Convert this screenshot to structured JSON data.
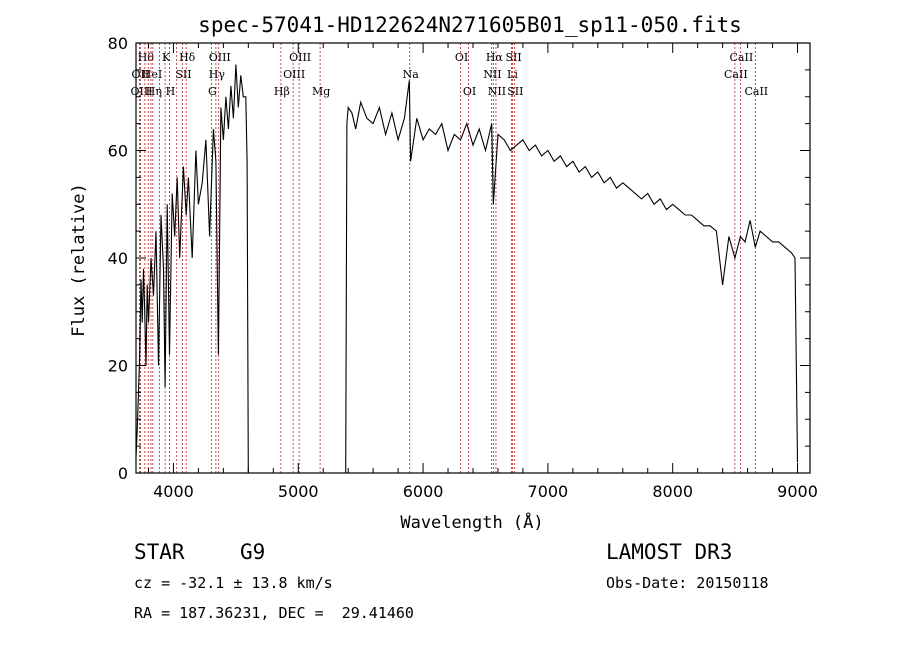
{
  "title": "spec-57041-HD122624N271605B01_sp11-050.fits",
  "info": {
    "class": "STAR",
    "subclass": "G9",
    "survey": "LAMOST DR3",
    "cz": "cz = -32.1 ± 13.8 km/s",
    "obs_date": "Obs-Date: 20150118",
    "coords": "RA = 187.36231, DEC =  29.41460"
  },
  "chart_data": {
    "type": "line",
    "title": "spec-57041-HD122624N271605B01_sp11-050.fits",
    "xlabel": "Wavelength (Å)",
    "ylabel": "Flux (relative)",
    "xlim": [
      3700,
      9100
    ],
    "ylim": [
      0,
      80
    ],
    "xticks": [
      4000,
      5000,
      6000,
      7000,
      8000,
      9000
    ],
    "yticks": [
      0,
      20,
      40,
      60,
      80
    ],
    "grid": false,
    "series": [
      {
        "x": [
          3700,
          3710,
          3720,
          3730,
          3740,
          3750,
          3760,
          3770,
          3780,
          3790,
          3800,
          3820,
          3840,
          3860,
          3880,
          3900,
          3920,
          3933,
          3950,
          3968,
          3990,
          4010,
          4030,
          4050,
          4080,
          4102,
          4120,
          4150,
          4180,
          4200,
          4230,
          4260,
          4290,
          4320,
          4340,
          4360,
          4380,
          4400,
          4420,
          4440,
          4460,
          4480,
          4500,
          4520,
          4540,
          4560,
          4580,
          4590,
          4600,
          4610,
          5380,
          5390,
          5400,
          5430,
          5460,
          5500,
          5550,
          5600,
          5650,
          5700,
          5750,
          5800,
          5850,
          5890,
          5900,
          5950,
          6000,
          6050,
          6100,
          6150,
          6200,
          6250,
          6300,
          6350,
          6400,
          6450,
          6500,
          6550,
          6563,
          6600,
          6650,
          6700,
          6750,
          6800,
          6850,
          6900,
          6950,
          7000,
          7050,
          7100,
          7150,
          7200,
          7250,
          7300,
          7350,
          7400,
          7450,
          7500,
          7550,
          7600,
          7650,
          7700,
          7750,
          7800,
          7850,
          7900,
          7950,
          8000,
          8050,
          8100,
          8150,
          8200,
          8250,
          8300,
          8350,
          8400,
          8450,
          8498,
          8542,
          8580,
          8620,
          8662,
          8700,
          8750,
          8800,
          8850,
          8900,
          8950,
          8980,
          9000
        ],
        "values": [
          3,
          8,
          15,
          22,
          36,
          28,
          38,
          30,
          20,
          35,
          28,
          40,
          33,
          45,
          20,
          48,
          38,
          16,
          50,
          22,
          52,
          44,
          55,
          40,
          57,
          48,
          55,
          40,
          60,
          50,
          54,
          62,
          44,
          64,
          58,
          22,
          68,
          62,
          70,
          64,
          72,
          66,
          76,
          68,
          74,
          70,
          70,
          58,
          0,
          0,
          0,
          65,
          68,
          67,
          64,
          69,
          66,
          65,
          68,
          63,
          67,
          62,
          66,
          73,
          58,
          66,
          62,
          64,
          63,
          65,
          60,
          63,
          62,
          65,
          61,
          64,
          60,
          65,
          50,
          63,
          62,
          60,
          61,
          62,
          60,
          61,
          59,
          60,
          58,
          59,
          57,
          58,
          56,
          57,
          55,
          56,
          54,
          55,
          53,
          54,
          53,
          52,
          51,
          52,
          50,
          51,
          49,
          50,
          49,
          48,
          48,
          47,
          46,
          46,
          45,
          35,
          44,
          40,
          44,
          43,
          47,
          42,
          45,
          44,
          43,
          43,
          42,
          41,
          40,
          2
        ]
      }
    ],
    "lines": [
      {
        "wl": 3727,
        "label": "OII",
        "row": 1
      },
      {
        "wl": 3736,
        "label": "OIII",
        "row": 2
      },
      {
        "wl": 3771,
        "label": "Hθ",
        "row": 0
      },
      {
        "wl": 3798,
        "label": "",
        "row": -1
      },
      {
        "wl": 3820,
        "label": "HeI",
        "row": 1
      },
      {
        "wl": 3835,
        "label": "Hη",
        "row": 2
      },
      {
        "wl": 3889,
        "label": "",
        "row": -1
      },
      {
        "wl": 3933,
        "label": "K",
        "row": 0
      },
      {
        "wl": 3968,
        "label": "H",
        "row": 2
      },
      {
        "wl": 4026,
        "label": "",
        "row": -1
      },
      {
        "wl": 4072,
        "label": "SII",
        "row": 1
      },
      {
        "wl": 4102,
        "label": "Hδ",
        "row": 0
      },
      {
        "wl": 4304,
        "label": "G",
        "row": 2
      },
      {
        "wl": 4340,
        "label": "Hγ",
        "row": 1
      },
      {
        "wl": 4363,
        "label": "OIII",
        "row": 0
      },
      {
        "wl": 4861,
        "label": "Hβ",
        "row": 2
      },
      {
        "wl": 4959,
        "label": "OIII",
        "row": 1
      },
      {
        "wl": 5007,
        "label": "OIII",
        "row": 0
      },
      {
        "wl": 5175,
        "label": "Mg",
        "row": 2
      },
      {
        "wl": 5893,
        "label": "Na",
        "row": 1
      },
      {
        "wl": 6300,
        "label": "OI",
        "row": 0
      },
      {
        "wl": 6364,
        "label": "OI",
        "row": 2
      },
      {
        "wl": 6548,
        "label": "NII",
        "row": 1
      },
      {
        "wl": 6563,
        "label": "Hα",
        "row": 0
      },
      {
        "wl": 6584,
        "label": "NII",
        "row": 2
      },
      {
        "wl": 6708,
        "label": "Li",
        "row": 1
      },
      {
        "wl": 6717,
        "label": "SII",
        "row": 0
      },
      {
        "wl": 6731,
        "label": "SII",
        "row": 2
      },
      {
        "wl": 8498,
        "label": "CaII",
        "row": 1
      },
      {
        "wl": 8542,
        "label": "CaII",
        "row": 0
      },
      {
        "wl": 8662,
        "label": "CaII",
        "row": 2
      }
    ]
  }
}
